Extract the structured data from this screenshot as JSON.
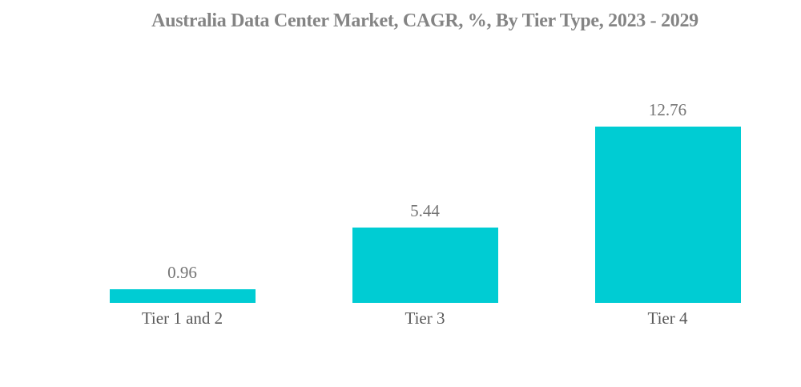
{
  "page": {
    "background": "#ffffff"
  },
  "chart_data": {
    "type": "bar",
    "title": "Australia Data Center Market, CAGR, %, By Tier Type, 2023 - 2029",
    "categories": [
      "Tier 1 and 2",
      "Tier 3",
      "Tier 4"
    ],
    "values": [
      0.96,
      5.44,
      12.76
    ],
    "value_labels": [
      "0.96",
      "5.44",
      "12.76"
    ],
    "ylim": [
      0,
      12.76
    ],
    "axis_visible": false,
    "grid": false,
    "legend": false,
    "bar_color": "#00CCD3",
    "title_color": "#848484",
    "value_label_color": "#747474",
    "category_label_color": "#595959"
  }
}
